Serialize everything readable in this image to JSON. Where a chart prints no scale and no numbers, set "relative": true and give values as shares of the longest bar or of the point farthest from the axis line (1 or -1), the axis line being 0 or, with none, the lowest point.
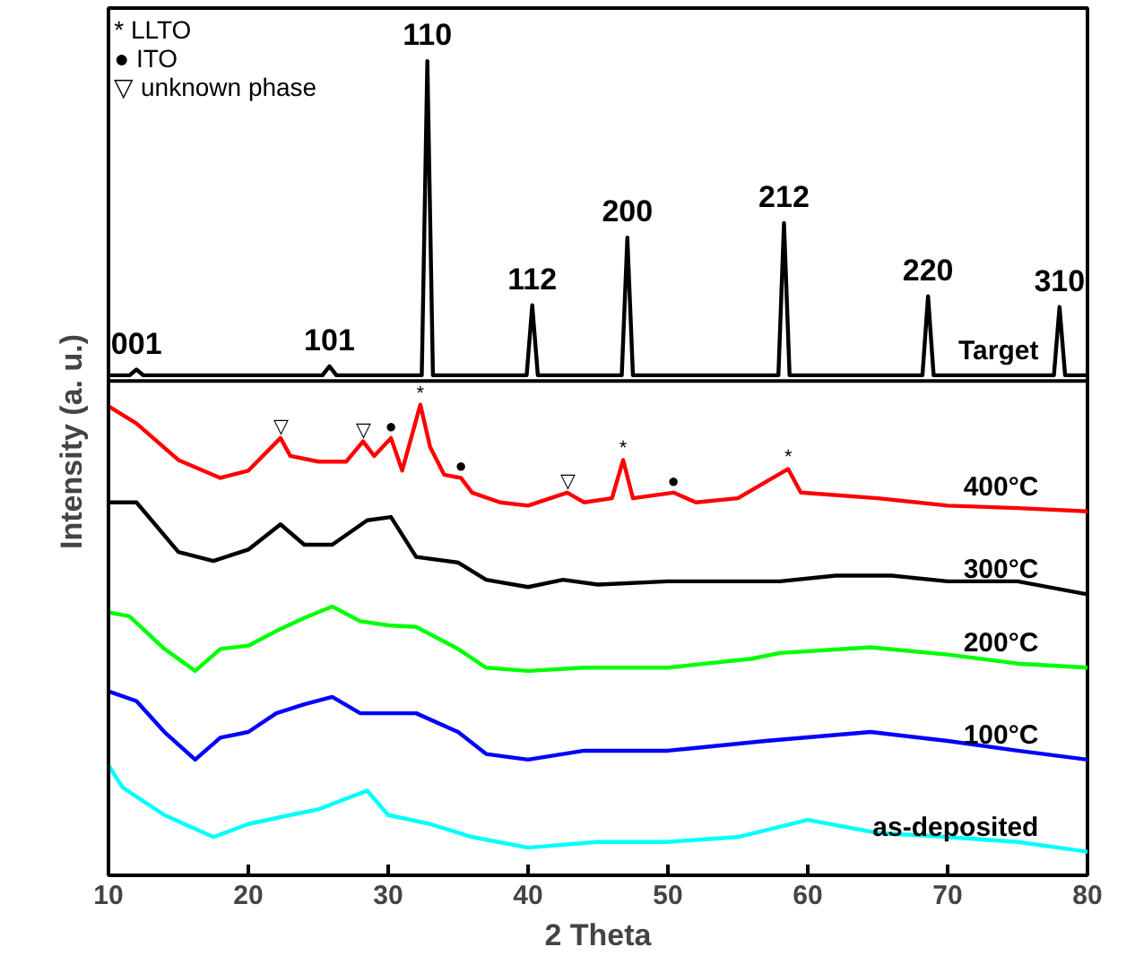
{
  "chart_data": {
    "type": "line",
    "relative": true,
    "xlabel": "2 Theta",
    "ylabel": "Intensity (a. u.)",
    "xlim": [
      10,
      80
    ],
    "xticks": [
      10,
      20,
      30,
      40,
      50,
      60,
      70,
      80
    ],
    "grid": false,
    "marker": "none",
    "line_style": "solid",
    "series": [
      {
        "name": "Target",
        "color": "#000000",
        "x": [
          10,
          11.5,
          12,
          12.5,
          15,
          20,
          25.3,
          25.8,
          26.3,
          30,
          32.4,
          32.8,
          33.2,
          36,
          39.9,
          40.3,
          40.7,
          44,
          46.7,
          47.1,
          47.5,
          52,
          57.9,
          58.3,
          58.7,
          63,
          68.2,
          68.6,
          69,
          73,
          77.6,
          78,
          78.4,
          80
        ],
        "values": [
          0.614,
          0.614,
          0.621,
          0.614,
          0.614,
          0.614,
          0.614,
          0.625,
          0.614,
          0.614,
          0.614,
          1.0,
          0.614,
          0.614,
          0.614,
          0.7,
          0.614,
          0.614,
          0.614,
          0.783,
          0.614,
          0.614,
          0.614,
          0.801,
          0.614,
          0.614,
          0.614,
          0.711,
          0.614,
          0.614,
          0.614,
          0.698,
          0.614,
          0.614
        ]
      },
      {
        "name": "400°C",
        "color": "#ff0000",
        "x": [
          10,
          12,
          15,
          18,
          20,
          22.3,
          23,
          25,
          27,
          28.2,
          29,
          30.2,
          31,
          32.3,
          33,
          34,
          35.2,
          36,
          38,
          40,
          42.8,
          44,
          46,
          46.8,
          47.5,
          50.4,
          52,
          55,
          58.6,
          59.5,
          65,
          70,
          75,
          80
        ],
        "values": [
          0.576,
          0.555,
          0.51,
          0.488,
          0.497,
          0.537,
          0.515,
          0.508,
          0.508,
          0.533,
          0.515,
          0.537,
          0.497,
          0.578,
          0.526,
          0.492,
          0.488,
          0.47,
          0.458,
          0.454,
          0.47,
          0.458,
          0.463,
          0.51,
          0.463,
          0.47,
          0.458,
          0.463,
          0.499,
          0.47,
          0.463,
          0.454,
          0.451,
          0.447
        ]
      },
      {
        "name": "300°C",
        "color": "#000000",
        "x": [
          10,
          12,
          15,
          17.5,
          20,
          22.3,
          24,
          26,
          28.5,
          30.2,
          32,
          35,
          37,
          40,
          42.5,
          45,
          50,
          58,
          62,
          66,
          70,
          75,
          80
        ],
        "values": [
          0.458,
          0.458,
          0.397,
          0.386,
          0.4,
          0.431,
          0.406,
          0.406,
          0.436,
          0.44,
          0.391,
          0.384,
          0.363,
          0.354,
          0.363,
          0.357,
          0.361,
          0.361,
          0.368,
          0.368,
          0.361,
          0.361,
          0.345
        ]
      },
      {
        "name": "200°C",
        "color": "#00ff00",
        "x": [
          10,
          11.5,
          14,
          16.2,
          18,
          20,
          22,
          24,
          26,
          28,
          30,
          32,
          35,
          37,
          40,
          44,
          50,
          56,
          58,
          64.5,
          70,
          75,
          80
        ],
        "values": [
          0.323,
          0.318,
          0.278,
          0.251,
          0.278,
          0.282,
          0.3,
          0.316,
          0.33,
          0.312,
          0.307,
          0.305,
          0.278,
          0.255,
          0.251,
          0.255,
          0.255,
          0.266,
          0.273,
          0.28,
          0.271,
          0.26,
          0.255
        ]
      },
      {
        "name": "100°C",
        "color": "#0000ff",
        "x": [
          10,
          12,
          14,
          16.2,
          18,
          20,
          22,
          24,
          26,
          28,
          30,
          32,
          35,
          37,
          40,
          44,
          50,
          57,
          64.5,
          70,
          75,
          80
        ],
        "values": [
          0.226,
          0.214,
          0.176,
          0.142,
          0.169,
          0.176,
          0.199,
          0.21,
          0.219,
          0.199,
          0.199,
          0.199,
          0.176,
          0.149,
          0.142,
          0.153,
          0.153,
          0.165,
          0.176,
          0.165,
          0.153,
          0.142
        ]
      },
      {
        "name": "as-deposited",
        "color": "#00ffff",
        "x": [
          10,
          11,
          14,
          17.5,
          20,
          23,
          25,
          28.5,
          30,
          33,
          36,
          40,
          45,
          50,
          55,
          60,
          65,
          70,
          75,
          80
        ],
        "values": [
          0.135,
          0.108,
          0.074,
          0.047,
          0.063,
          0.074,
          0.081,
          0.104,
          0.074,
          0.063,
          0.047,
          0.034,
          0.041,
          0.041,
          0.047,
          0.068,
          0.052,
          0.047,
          0.041,
          0.029
        ]
      }
    ],
    "ref_lines": [
      {
        "axis": "y",
        "value": 0.607,
        "color": "#000000"
      }
    ],
    "annotations": [
      "* LLTO",
      "● ITO",
      "▽ unknown phase",
      {
        "text": "001",
        "x": 12,
        "y": 0.621
      },
      {
        "text": "101",
        "x": 25.8,
        "y": 0.625
      },
      {
        "text": "110",
        "x": 32.8,
        "y": 1.0
      },
      {
        "text": "112",
        "x": 40.3,
        "y": 0.7
      },
      {
        "text": "200",
        "x": 47.1,
        "y": 0.783
      },
      {
        "text": "212",
        "x": 58.3,
        "y": 0.801
      },
      {
        "text": "220",
        "x": 68.6,
        "y": 0.711
      },
      {
        "text": "310",
        "x": 78,
        "y": 0.698
      },
      {
        "text": "▽",
        "x": 22.3,
        "y": 0.537
      },
      {
        "text": "▽",
        "x": 28.2,
        "y": 0.533
      },
      {
        "text": "●",
        "x": 30.2,
        "y": 0.537
      },
      {
        "text": "*",
        "x": 32.3,
        "y": 0.578
      },
      {
        "text": "●",
        "x": 35.2,
        "y": 0.488
      },
      {
        "text": "▽",
        "x": 42.8,
        "y": 0.47
      },
      {
        "text": "*",
        "x": 46.8,
        "y": 0.51
      },
      {
        "text": "●",
        "x": 50.4,
        "y": 0.47
      },
      {
        "text": "*",
        "x": 58.6,
        "y": 0.499
      }
    ]
  }
}
